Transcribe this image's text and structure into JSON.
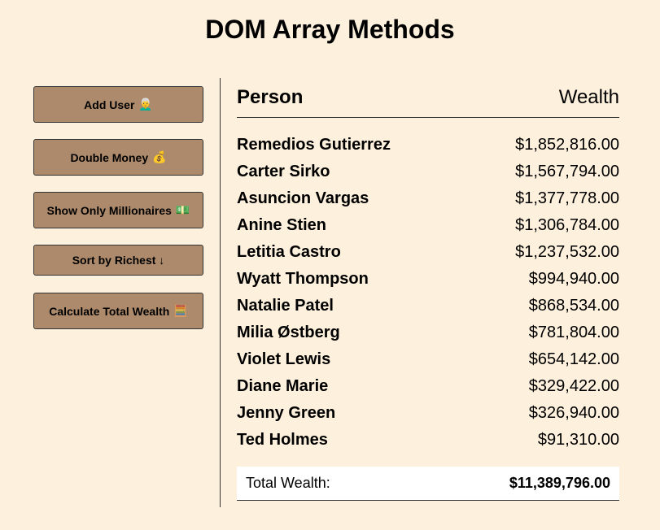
{
  "page": {
    "title": "DOM Array Methods"
  },
  "buttons": {
    "add_user": {
      "label": "Add User",
      "emoji": "👨‍🦳"
    },
    "double_money": {
      "label": "Double Money",
      "emoji": "💰"
    },
    "show_millionaires": {
      "label": "Show Only Millionaires",
      "emoji": "💵"
    },
    "sort_richest": {
      "label": "Sort by Richest ↓"
    },
    "calculate_total": {
      "label": "Calculate Total Wealth",
      "emoji": "🧮"
    }
  },
  "table": {
    "headers": {
      "person": "Person",
      "wealth": "Wealth"
    },
    "rows": [
      {
        "name": "Remedios Gutierrez",
        "wealth": "$1,852,816.00"
      },
      {
        "name": "Carter Sirko",
        "wealth": "$1,567,794.00"
      },
      {
        "name": "Asuncion Vargas",
        "wealth": "$1,377,778.00"
      },
      {
        "name": "Anine Stien",
        "wealth": "$1,306,784.00"
      },
      {
        "name": "Letitia Castro",
        "wealth": "$1,237,532.00"
      },
      {
        "name": "Wyatt Thompson",
        "wealth": "$994,940.00"
      },
      {
        "name": "Natalie Patel",
        "wealth": "$868,534.00"
      },
      {
        "name": "Milia Østberg",
        "wealth": "$781,804.00"
      },
      {
        "name": "Violet Lewis",
        "wealth": "$654,142.00"
      },
      {
        "name": "Diane Marie",
        "wealth": "$329,422.00"
      },
      {
        "name": "Jenny Green",
        "wealth": "$326,940.00"
      },
      {
        "name": "Ted Holmes",
        "wealth": "$91,310.00"
      }
    ]
  },
  "total": {
    "label": "Total Wealth:",
    "value": "$11,389,796.00"
  },
  "colors": {
    "background": "#fdf0dc",
    "button": "#ad8a6b",
    "total_bg": "#ffffff"
  }
}
